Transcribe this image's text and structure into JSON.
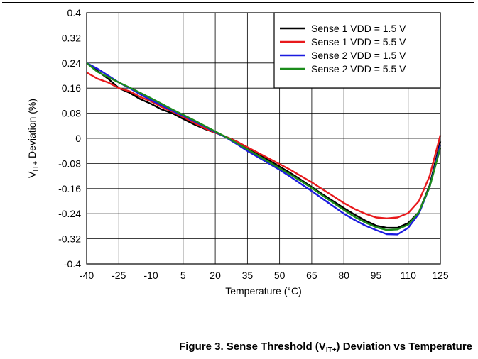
{
  "figure": {
    "caption_prefix": "Figure 3. Sense Threshold (V",
    "caption_sub": "IT+",
    "caption_suffix": ") Deviation vs Temperature"
  },
  "chart_data": {
    "type": "line",
    "xlabel": "Temperature (°C)",
    "ylabel_main": "V",
    "ylabel_sub": "IT+",
    "ylabel_rest": " Deviation (%)",
    "xlim": [
      -40,
      125
    ],
    "ylim": [
      -0.4,
      0.4
    ],
    "xticks": [
      -40,
      -25,
      -10,
      5,
      20,
      35,
      50,
      65,
      80,
      95,
      110,
      125
    ],
    "yticks": [
      0.4,
      0.32,
      0.24,
      0.16,
      0.08,
      0,
      -0.08,
      -0.16,
      -0.24,
      -0.32,
      -0.4
    ],
    "ytick_labels": [
      "0.4",
      "0.32",
      "0.24",
      "0.16",
      "0.08",
      "0",
      "-0.08",
      "-0.16",
      "-0.24",
      "-0.32",
      "-0.4"
    ],
    "xtick_labels": [
      "-40",
      "-25",
      "-10",
      "5",
      "20",
      "35",
      "50",
      "65",
      "80",
      "95",
      "110",
      "125"
    ],
    "grid": true,
    "legend_position": "top-right",
    "series": [
      {
        "name": "Sense 1 VDD = 1.5 V",
        "color": "#000000",
        "points": [
          [
            -40,
            0.24
          ],
          [
            -35,
            0.215
          ],
          [
            -30,
            0.19
          ],
          [
            -25,
            0.16
          ],
          [
            -20,
            0.145
          ],
          [
            -15,
            0.125
          ],
          [
            -10,
            0.11
          ],
          [
            -5,
            0.092
          ],
          [
            0,
            0.08
          ],
          [
            5,
            0.062
          ],
          [
            10,
            0.045
          ],
          [
            15,
            0.03
          ],
          [
            20,
            0.018
          ],
          [
            25,
            0.005
          ],
          [
            30,
            -0.01
          ],
          [
            35,
            -0.03
          ],
          [
            40,
            -0.05
          ],
          [
            45,
            -0.07
          ],
          [
            50,
            -0.09
          ],
          [
            55,
            -0.11
          ],
          [
            60,
            -0.132
          ],
          [
            65,
            -0.155
          ],
          [
            70,
            -0.178
          ],
          [
            75,
            -0.2
          ],
          [
            80,
            -0.222
          ],
          [
            85,
            -0.243
          ],
          [
            90,
            -0.262
          ],
          [
            95,
            -0.278
          ],
          [
            100,
            -0.285
          ],
          [
            105,
            -0.285
          ],
          [
            110,
            -0.27
          ],
          [
            115,
            -0.235
          ],
          [
            120,
            -0.15
          ],
          [
            125,
            -0.01
          ]
        ]
      },
      {
        "name": "Sense 1 VDD = 5.5 V",
        "color": "#e8191c",
        "points": [
          [
            -40,
            0.21
          ],
          [
            -35,
            0.19
          ],
          [
            -30,
            0.178
          ],
          [
            -25,
            0.16
          ],
          [
            -20,
            0.15
          ],
          [
            -15,
            0.132
          ],
          [
            -10,
            0.118
          ],
          [
            -5,
            0.1
          ],
          [
            0,
            0.085
          ],
          [
            5,
            0.068
          ],
          [
            10,
            0.05
          ],
          [
            15,
            0.032
          ],
          [
            20,
            0.018
          ],
          [
            25,
            0.005
          ],
          [
            30,
            -0.01
          ],
          [
            35,
            -0.028
          ],
          [
            40,
            -0.046
          ],
          [
            45,
            -0.064
          ],
          [
            50,
            -0.082
          ],
          [
            55,
            -0.1
          ],
          [
            60,
            -0.12
          ],
          [
            65,
            -0.14
          ],
          [
            70,
            -0.162
          ],
          [
            75,
            -0.184
          ],
          [
            80,
            -0.206
          ],
          [
            85,
            -0.225
          ],
          [
            90,
            -0.24
          ],
          [
            95,
            -0.252
          ],
          [
            100,
            -0.255
          ],
          [
            105,
            -0.252
          ],
          [
            110,
            -0.238
          ],
          [
            115,
            -0.2
          ],
          [
            120,
            -0.12
          ],
          [
            125,
            0.01
          ]
        ]
      },
      {
        "name": "Sense 2 VDD = 1.5 V",
        "color": "#1b1be0",
        "points": [
          [
            -40,
            0.24
          ],
          [
            -35,
            0.222
          ],
          [
            -30,
            0.2
          ],
          [
            -25,
            0.178
          ],
          [
            -20,
            0.16
          ],
          [
            -15,
            0.14
          ],
          [
            -10,
            0.122
          ],
          [
            -5,
            0.105
          ],
          [
            0,
            0.088
          ],
          [
            5,
            0.072
          ],
          [
            10,
            0.055
          ],
          [
            15,
            0.038
          ],
          [
            20,
            0.02
          ],
          [
            25,
            0.003
          ],
          [
            30,
            -0.018
          ],
          [
            35,
            -0.04
          ],
          [
            40,
            -0.06
          ],
          [
            45,
            -0.08
          ],
          [
            50,
            -0.1
          ],
          [
            55,
            -0.122
          ],
          [
            60,
            -0.145
          ],
          [
            65,
            -0.168
          ],
          [
            70,
            -0.192
          ],
          [
            75,
            -0.216
          ],
          [
            80,
            -0.24
          ],
          [
            85,
            -0.26
          ],
          [
            90,
            -0.278
          ],
          [
            95,
            -0.292
          ],
          [
            100,
            -0.305
          ],
          [
            105,
            -0.306
          ],
          [
            110,
            -0.285
          ],
          [
            115,
            -0.24
          ],
          [
            120,
            -0.155
          ],
          [
            125,
            -0.02
          ]
        ]
      },
      {
        "name": "Sense 2 VDD = 5.5 V",
        "color": "#1b8c1b",
        "points": [
          [
            -40,
            0.24
          ],
          [
            -35,
            0.212
          ],
          [
            -30,
            0.195
          ],
          [
            -25,
            0.178
          ],
          [
            -20,
            0.162
          ],
          [
            -15,
            0.145
          ],
          [
            -10,
            0.128
          ],
          [
            -5,
            0.11
          ],
          [
            0,
            0.092
          ],
          [
            5,
            0.075
          ],
          [
            10,
            0.058
          ],
          [
            15,
            0.04
          ],
          [
            20,
            0.022
          ],
          [
            25,
            0.004
          ],
          [
            30,
            -0.015
          ],
          [
            35,
            -0.035
          ],
          [
            40,
            -0.055
          ],
          [
            45,
            -0.075
          ],
          [
            50,
            -0.095
          ],
          [
            55,
            -0.115
          ],
          [
            60,
            -0.136
          ],
          [
            65,
            -0.158
          ],
          [
            70,
            -0.182
          ],
          [
            75,
            -0.205
          ],
          [
            80,
            -0.228
          ],
          [
            85,
            -0.25
          ],
          [
            90,
            -0.268
          ],
          [
            95,
            -0.283
          ],
          [
            100,
            -0.292
          ],
          [
            105,
            -0.29
          ],
          [
            110,
            -0.275
          ],
          [
            115,
            -0.235
          ],
          [
            120,
            -0.155
          ],
          [
            125,
            -0.03
          ]
        ]
      }
    ]
  }
}
